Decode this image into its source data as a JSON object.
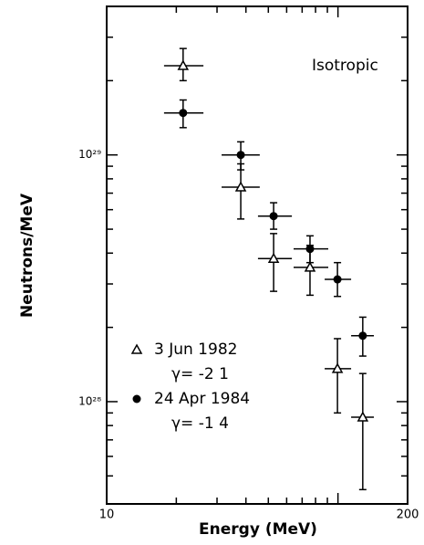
{
  "chart_data": {
    "type": "scatter",
    "xlabel": "Energy (MeV)",
    "ylabel": "Neutrons/MeV",
    "annotation": "Isotropic",
    "log_x": true,
    "log_y": true,
    "xlim": [
      10,
      200
    ],
    "ylim": [
      3.85e+27,
      4e+29
    ],
    "xticks": [
      10,
      200
    ],
    "yticks": [
      {
        "value": 1e+28,
        "label": "10²⁸"
      },
      {
        "value": 1e+29,
        "label": "10²⁹"
      }
    ],
    "xminor_ticks": [
      20,
      30,
      40,
      50,
      60,
      70,
      80,
      90,
      100
    ],
    "yminor_ticks": [
      5e+27,
      6e+27,
      7e+27,
      8e+27,
      9e+27,
      2e+28,
      3e+28,
      4e+28,
      5e+28,
      6e+28,
      7e+28,
      8e+28,
      9e+28,
      2e+29,
      3e+29,
      4e+29
    ],
    "series": [
      {
        "name": "3 Jun 1982",
        "gamma_label": "γ= -2 1",
        "marker": "triangle",
        "color": "#000",
        "x": [
          21.4,
          38.0,
          52.7,
          75.7,
          99.5,
          128
        ],
        "values": [
          2.3e+29,
          7.4e+28,
          3.8e+28,
          3.5e+28,
          1.36e+28,
          8.65e+27
        ],
        "x_low": [
          17.7,
          31.4,
          45.1,
          64.3,
          87.6,
          114
        ],
        "x_high": [
          26.2,
          45.9,
          63.2,
          90.8,
          114,
          143
        ],
        "y_low": [
          2e+29,
          5.5e+28,
          2.8e+28,
          2.7e+28,
          9e+27,
          4.4e+27
        ],
        "y_high": [
          2.7e+29,
          9.2e+28,
          4.8e+28,
          4.3e+28,
          1.8e+28,
          1.3e+28
        ]
      },
      {
        "name": "24 Apr 1984",
        "gamma_label": "γ= -1 4",
        "marker": "circle",
        "color": "#000",
        "x": [
          21.4,
          38.0,
          52.7,
          75.7,
          99.5,
          128
        ],
        "values": [
          1.48e+29,
          1e+29,
          5.65e+28,
          4.16e+28,
          3.13e+28,
          1.85e+28
        ],
        "x_low": [
          17.7,
          31.4,
          45.1,
          64.3,
          87.6,
          114
        ],
        "x_high": [
          26.2,
          45.9,
          63.2,
          90.8,
          114,
          143
        ],
        "y_low": [
          1.29e+29,
          8.7e+28,
          5e+28,
          3.66e+28,
          2.67e+28,
          1.53e+28
        ],
        "y_high": [
          1.67e+29,
          1.13e+29,
          6.4e+28,
          4.7e+28,
          3.66e+28,
          2.2e+28
        ]
      }
    ]
  }
}
